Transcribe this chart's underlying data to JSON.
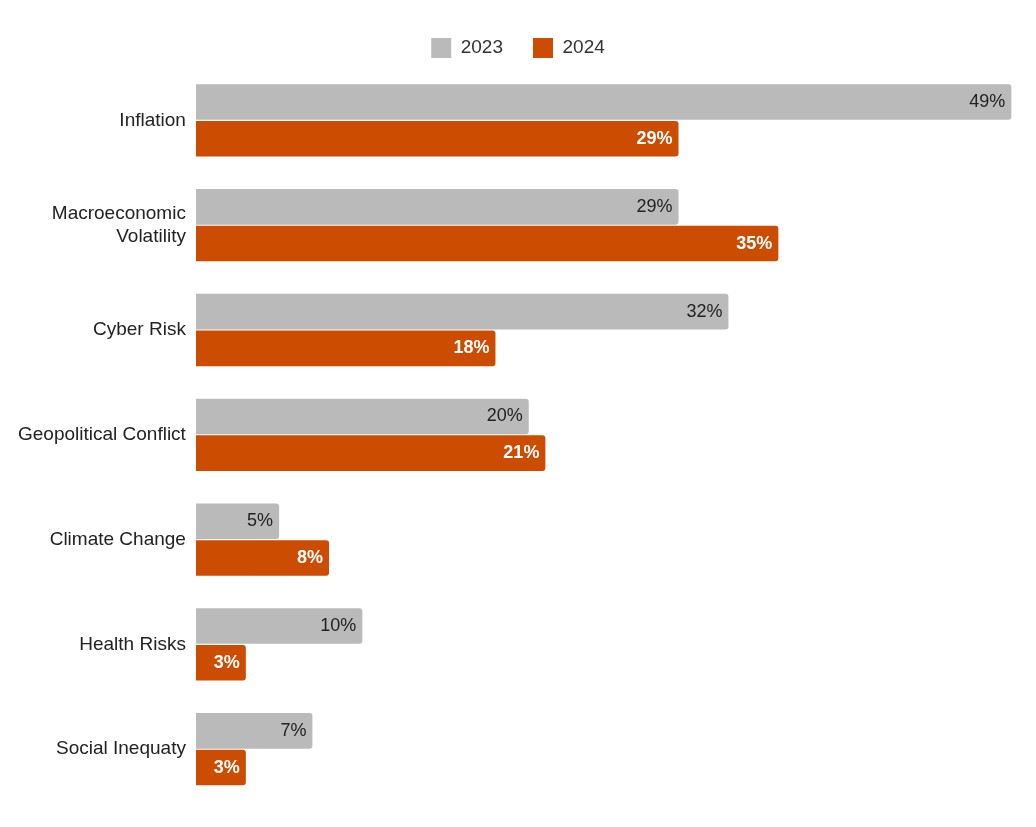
{
  "chart_data": {
    "type": "bar",
    "orientation": "horizontal",
    "categories": [
      "Inflation",
      "Macroeconomic Volatility",
      "Cyber Risk",
      "Geopolitical Conflict",
      "Climate Change",
      "Health Risks",
      "Social Inequaty"
    ],
    "series": [
      {
        "name": "2023",
        "color": "#bababa",
        "values": [
          49,
          29,
          32,
          20,
          5,
          10,
          7
        ],
        "value_labels": [
          "49%",
          "29%",
          "32%",
          "20%",
          "5%",
          "10%",
          "7%"
        ]
      },
      {
        "name": "2024",
        "color": "#cc4c02",
        "values": [
          29,
          35,
          18,
          21,
          8,
          3,
          3
        ],
        "value_labels": [
          "29%",
          "35%",
          "18%",
          "21%",
          "8%",
          "3%",
          "3%"
        ]
      }
    ],
    "legend": "top",
    "tick_labels": "y",
    "grid": false
  }
}
